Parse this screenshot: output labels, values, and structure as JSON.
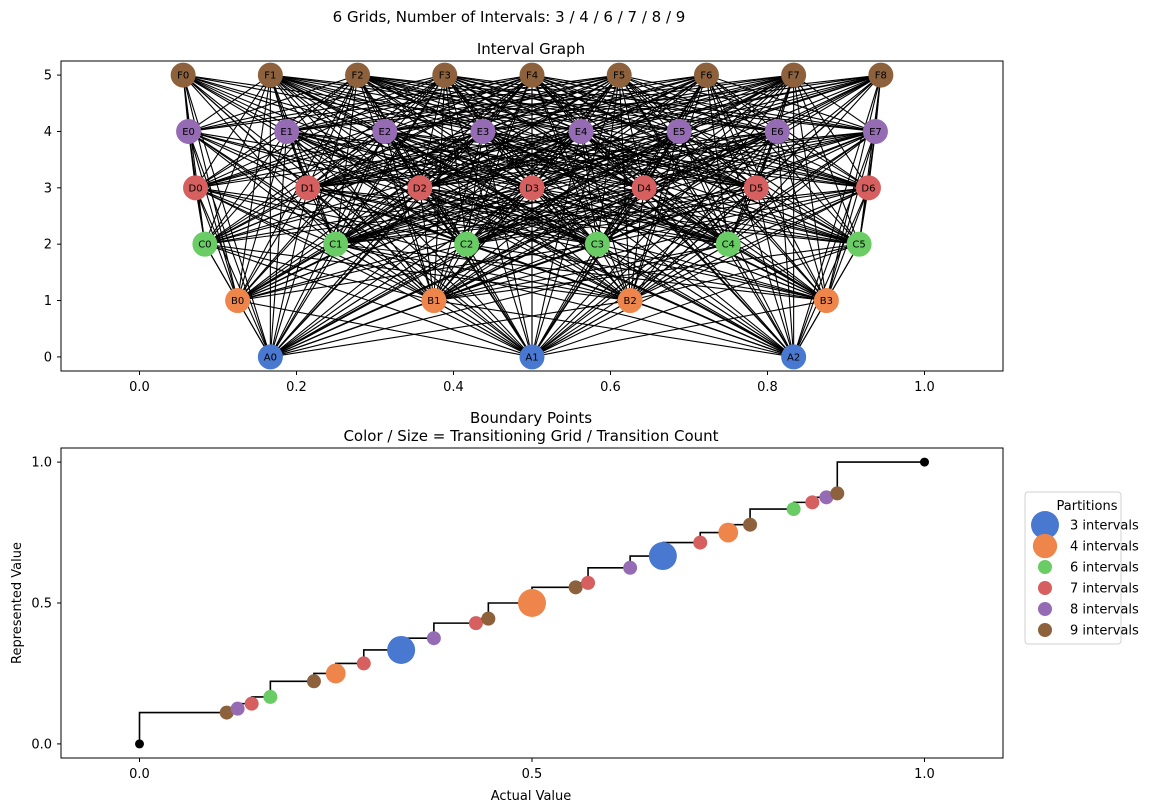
{
  "figure": {
    "suptitle": "6 Grids, Number of Intervals: 3 / 4 / 6 / 7 / 8 / 9"
  },
  "colors": {
    "A": "#4878d0",
    "B": "#ee854a",
    "C": "#6acc64",
    "D": "#d65f5f",
    "E": "#956cb4",
    "F": "#8c613c",
    "edge": "#000000",
    "endpoint": "#000000"
  },
  "chart_data": [
    {
      "type": "network",
      "title": "Interval Graph",
      "xlabel": "",
      "ylabel": "",
      "xlim": [
        -0.1,
        1.1
      ],
      "ylim": [
        -0.25,
        5.25
      ],
      "xticks": [
        "0.0",
        "0.2",
        "0.4",
        "0.6",
        "0.8",
        "1.0"
      ],
      "yticks": [
        "0",
        "1",
        "2",
        "3",
        "4",
        "5"
      ],
      "nodes": [
        {
          "id": "A0",
          "group": "A",
          "x": 0.1667,
          "y": 0
        },
        {
          "id": "A1",
          "group": "A",
          "x": 0.5,
          "y": 0
        },
        {
          "id": "A2",
          "group": "A",
          "x": 0.8333,
          "y": 0
        },
        {
          "id": "B0",
          "group": "B",
          "x": 0.125,
          "y": 1
        },
        {
          "id": "B1",
          "group": "B",
          "x": 0.375,
          "y": 1
        },
        {
          "id": "B2",
          "group": "B",
          "x": 0.625,
          "y": 1
        },
        {
          "id": "B3",
          "group": "B",
          "x": 0.875,
          "y": 1
        },
        {
          "id": "C0",
          "group": "C",
          "x": 0.0833,
          "y": 2
        },
        {
          "id": "C1",
          "group": "C",
          "x": 0.25,
          "y": 2
        },
        {
          "id": "C2",
          "group": "C",
          "x": 0.4167,
          "y": 2
        },
        {
          "id": "C3",
          "group": "C",
          "x": 0.5833,
          "y": 2
        },
        {
          "id": "C4",
          "group": "C",
          "x": 0.75,
          "y": 2
        },
        {
          "id": "C5",
          "group": "C",
          "x": 0.9167,
          "y": 2
        },
        {
          "id": "D0",
          "group": "D",
          "x": 0.0714,
          "y": 3
        },
        {
          "id": "D1",
          "group": "D",
          "x": 0.2143,
          "y": 3
        },
        {
          "id": "D2",
          "group": "D",
          "x": 0.3571,
          "y": 3
        },
        {
          "id": "D3",
          "group": "D",
          "x": 0.5,
          "y": 3
        },
        {
          "id": "D4",
          "group": "D",
          "x": 0.6429,
          "y": 3
        },
        {
          "id": "D5",
          "group": "D",
          "x": 0.7857,
          "y": 3
        },
        {
          "id": "D6",
          "group": "D",
          "x": 0.9286,
          "y": 3
        },
        {
          "id": "E0",
          "group": "E",
          "x": 0.0625,
          "y": 4
        },
        {
          "id": "E1",
          "group": "E",
          "x": 0.1875,
          "y": 4
        },
        {
          "id": "E2",
          "group": "E",
          "x": 0.3125,
          "y": 4
        },
        {
          "id": "E3",
          "group": "E",
          "x": 0.4375,
          "y": 4
        },
        {
          "id": "E4",
          "group": "E",
          "x": 0.5625,
          "y": 4
        },
        {
          "id": "E5",
          "group": "E",
          "x": 0.6875,
          "y": 4
        },
        {
          "id": "E6",
          "group": "E",
          "x": 0.8125,
          "y": 4
        },
        {
          "id": "E7",
          "group": "E",
          "x": 0.9375,
          "y": 4
        },
        {
          "id": "F0",
          "group": "F",
          "x": 0.0556,
          "y": 5
        },
        {
          "id": "F1",
          "group": "F",
          "x": 0.1667,
          "y": 5
        },
        {
          "id": "F2",
          "group": "F",
          "x": 0.2778,
          "y": 5
        },
        {
          "id": "F3",
          "group": "F",
          "x": 0.3889,
          "y": 5
        },
        {
          "id": "F4",
          "group": "F",
          "x": 0.5,
          "y": 5
        },
        {
          "id": "F5",
          "group": "F",
          "x": 0.6111,
          "y": 5
        },
        {
          "id": "F6",
          "group": "F",
          "x": 0.7222,
          "y": 5
        },
        {
          "id": "F7",
          "group": "F",
          "x": 0.8333,
          "y": 5
        },
        {
          "id": "F8",
          "group": "F",
          "x": 0.9444,
          "y": 5
        }
      ]
    },
    {
      "type": "scatter",
      "title": "Boundary Points",
      "subtitle": "Color / Size = Transitioning Grid / Transition Count",
      "xlabel": "Actual Value",
      "ylabel": "Represented Value",
      "xlim": [
        -0.1,
        1.1
      ],
      "ylim": [
        -0.05,
        1.05
      ],
      "xticks": [
        0.0,
        0.5,
        1.0
      ],
      "xtick_labels": [
        "0.0",
        "0.5",
        "1.0"
      ],
      "yticks": [
        0.0,
        0.5,
        1.0
      ],
      "ytick_labels": [
        "0.0",
        "0.5",
        "1.0"
      ],
      "step_points": [
        [
          0,
          0
        ],
        [
          0.1111,
          0.1111
        ],
        [
          0.125,
          0.125
        ],
        [
          0.1429,
          0.1429
        ],
        [
          0.1667,
          0.1667
        ],
        [
          0.2222,
          0.2222
        ],
        [
          0.25,
          0.25
        ],
        [
          0.2857,
          0.2857
        ],
        [
          0.3333,
          0.3333
        ],
        [
          0.375,
          0.375
        ],
        [
          0.4286,
          0.4286
        ],
        [
          0.4444,
          0.4444
        ],
        [
          0.5,
          0.5
        ],
        [
          0.5556,
          0.5556
        ],
        [
          0.5714,
          0.5714
        ],
        [
          0.625,
          0.625
        ],
        [
          0.6667,
          0.6667
        ],
        [
          0.7143,
          0.7143
        ],
        [
          0.75,
          0.75
        ],
        [
          0.7778,
          0.7778
        ],
        [
          0.8333,
          0.8333
        ],
        [
          0.8571,
          0.8571
        ],
        [
          0.875,
          0.875
        ],
        [
          0.8889,
          0.8889
        ],
        [
          1,
          1
        ]
      ],
      "endpoints": [
        [
          0,
          0
        ],
        [
          1,
          1
        ]
      ],
      "boundaries": [
        {
          "x": 0.1111,
          "group": "F",
          "count": 1
        },
        {
          "x": 0.125,
          "group": "E",
          "count": 1
        },
        {
          "x": 0.1429,
          "group": "D",
          "count": 1
        },
        {
          "x": 0.1667,
          "group": "C",
          "count": 1
        },
        {
          "x": 0.2222,
          "group": "F",
          "count": 1
        },
        {
          "x": 0.25,
          "group": "B",
          "count": 2
        },
        {
          "x": 0.2857,
          "group": "D",
          "count": 1
        },
        {
          "x": 0.3333,
          "group": "A",
          "count": 4
        },
        {
          "x": 0.375,
          "group": "E",
          "count": 1
        },
        {
          "x": 0.4286,
          "group": "D",
          "count": 1
        },
        {
          "x": 0.4444,
          "group": "F",
          "count": 1
        },
        {
          "x": 0.5,
          "group": "B",
          "count": 4
        },
        {
          "x": 0.5556,
          "group": "F",
          "count": 1
        },
        {
          "x": 0.5714,
          "group": "D",
          "count": 1
        },
        {
          "x": 0.625,
          "group": "E",
          "count": 1
        },
        {
          "x": 0.6667,
          "group": "A",
          "count": 4
        },
        {
          "x": 0.7143,
          "group": "D",
          "count": 1
        },
        {
          "x": 0.75,
          "group": "B",
          "count": 2
        },
        {
          "x": 0.7778,
          "group": "F",
          "count": 1
        },
        {
          "x": 0.8333,
          "group": "C",
          "count": 1
        },
        {
          "x": 0.8571,
          "group": "D",
          "count": 1
        },
        {
          "x": 0.875,
          "group": "E",
          "count": 1
        },
        {
          "x": 0.8889,
          "group": "F",
          "count": 1
        }
      ],
      "legend": {
        "title": "Partitions",
        "placement": "right, outside",
        "entries": [
          {
            "label": "3 intervals",
            "group": "A",
            "size": 4
          },
          {
            "label": "4 intervals",
            "group": "B",
            "size": 3
          },
          {
            "label": "6 intervals",
            "group": "C",
            "size": 1
          },
          {
            "label": "7 intervals",
            "group": "D",
            "size": 1
          },
          {
            "label": "8 intervals",
            "group": "E",
            "size": 1
          },
          {
            "label": "9 intervals",
            "group": "F",
            "size": 1
          }
        ]
      }
    }
  ]
}
